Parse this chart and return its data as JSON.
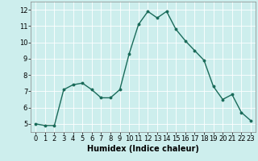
{
  "x": [
    0,
    1,
    2,
    3,
    4,
    5,
    6,
    7,
    8,
    9,
    10,
    11,
    12,
    13,
    14,
    15,
    16,
    17,
    18,
    19,
    20,
    21,
    22,
    23
  ],
  "y": [
    5.0,
    4.9,
    4.9,
    7.1,
    7.4,
    7.5,
    7.1,
    6.6,
    6.6,
    7.1,
    9.3,
    11.1,
    11.9,
    11.5,
    11.9,
    10.8,
    10.1,
    9.5,
    8.9,
    7.3,
    6.5,
    6.8,
    5.7,
    5.2
  ],
  "line_color": "#1a6b5a",
  "marker": "o",
  "markersize": 1.8,
  "linewidth": 1.0,
  "background_color": "#cdeeed",
  "grid_color": "#ffffff",
  "xlabel": "Humidex (Indice chaleur)",
  "xlabel_fontsize": 7,
  "tick_fontsize": 6,
  "xlim": [
    -0.5,
    23.5
  ],
  "ylim": [
    4.5,
    12.5
  ],
  "yticks": [
    5,
    6,
    7,
    8,
    9,
    10,
    11,
    12
  ],
  "xticks": [
    0,
    1,
    2,
    3,
    4,
    5,
    6,
    7,
    8,
    9,
    10,
    11,
    12,
    13,
    14,
    15,
    16,
    17,
    18,
    19,
    20,
    21,
    22,
    23
  ]
}
